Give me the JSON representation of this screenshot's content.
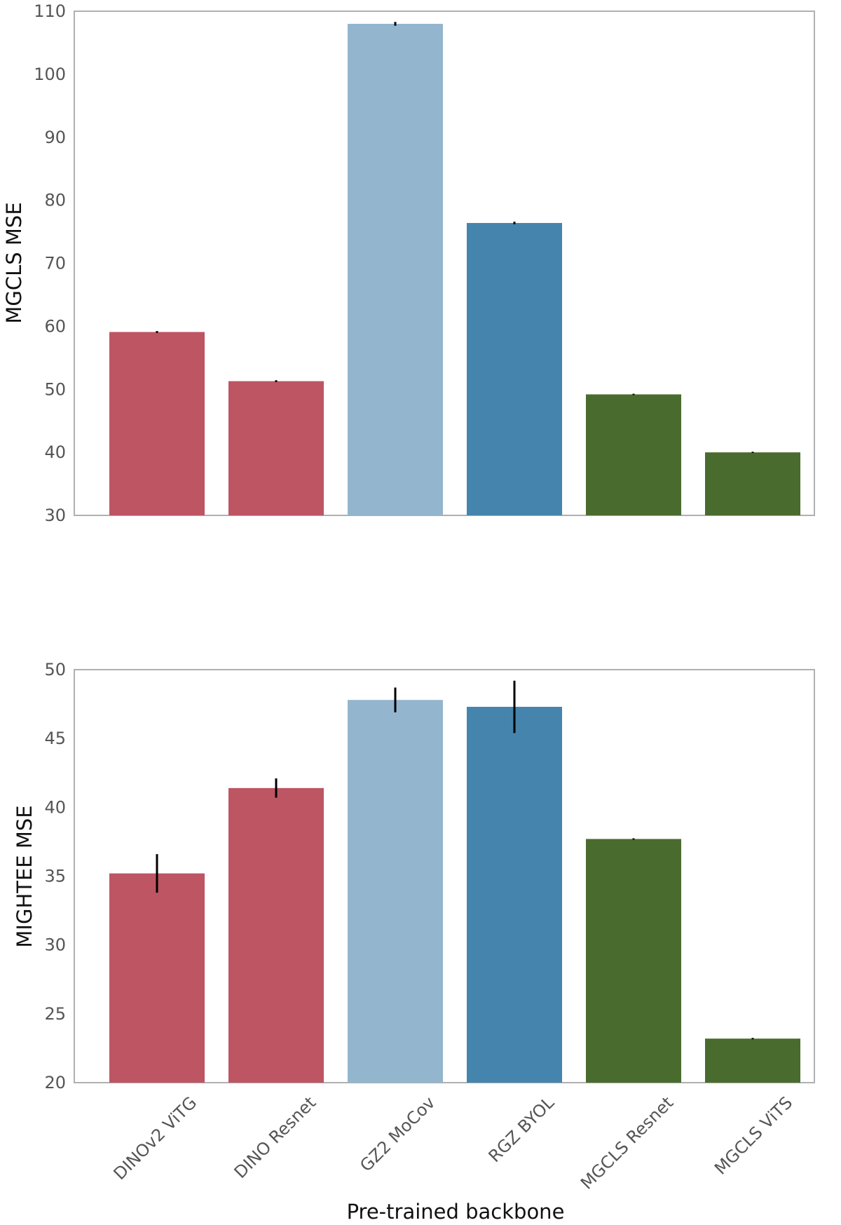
{
  "chart_data": [
    {
      "type": "bar",
      "categories": [
        "DINOv2 ViTG",
        "DINO Resnet",
        "GZ2 MoCov",
        "RGZ BYOL",
        "MGCLS Resnet",
        "MGCLS ViTS"
      ],
      "values": [
        59.1,
        51.3,
        108.0,
        76.4,
        49.2,
        40.0
      ],
      "errors": [
        0.15,
        0.15,
        0.3,
        0.2,
        0.1,
        0.1
      ],
      "colors": [
        "#bd5563",
        "#bd5563",
        "#93b6ce",
        "#4585ad",
        "#4a6b2e",
        "#4a6b2e"
      ],
      "ylabel": "MGCLS MSE",
      "xlabel": "",
      "ylim": [
        30,
        110
      ],
      "yticks": [
        30,
        40,
        50,
        60,
        70,
        80,
        90,
        100,
        110
      ],
      "grid": false,
      "show_xticklabels": false
    },
    {
      "type": "bar",
      "categories": [
        "DINOv2 ViTG",
        "DINO Resnet",
        "GZ2 MoCov",
        "RGZ BYOL",
        "MGCLS Resnet",
        "MGCLS ViTS"
      ],
      "values": [
        35.2,
        41.4,
        47.8,
        47.3,
        37.7,
        23.2
      ],
      "errors": [
        1.4,
        0.7,
        0.9,
        1.9,
        0.05,
        0.05
      ],
      "colors": [
        "#bd5563",
        "#bd5563",
        "#93b6ce",
        "#4585ad",
        "#4a6b2e",
        "#4a6b2e"
      ],
      "ylabel": "MIGHTEE MSE",
      "xlabel": "Pre-trained backbone",
      "ylim": [
        20,
        50
      ],
      "yticks": [
        20,
        25,
        30,
        35,
        40,
        45,
        50
      ],
      "grid": false,
      "show_xticklabels": true
    }
  ]
}
